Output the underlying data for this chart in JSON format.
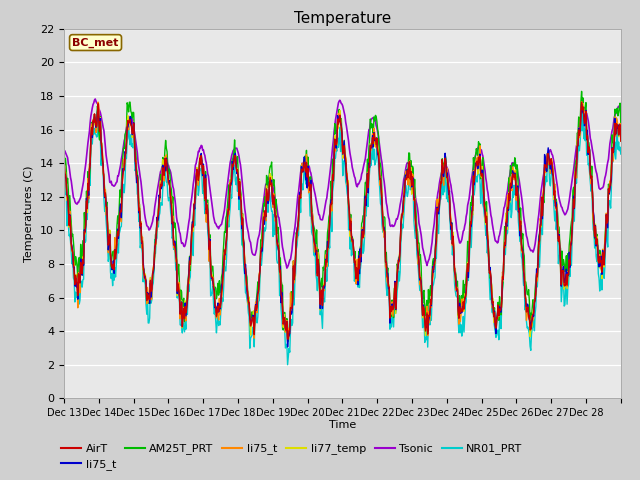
{
  "title": "Temperature",
  "ylabel": "Temperatures (C)",
  "xlabel": "Time",
  "ylim": [
    0,
    22
  ],
  "annotation_text": "BC_met",
  "series_colors": {
    "AirT": "#cc0000",
    "li75_t_blue": "#0000cc",
    "AM25T_PRT": "#00bb00",
    "li75_t_orange": "#ff8800",
    "li77_temp": "#dddd00",
    "Tsonic": "#9900cc",
    "NR01_PRT": "#00cccc"
  },
  "tick_labels": [
    "Dec 13",
    "Dec 14",
    "Dec 15",
    "Dec 16",
    "Dec 17",
    "Dec 18",
    "Dec 19",
    "Dec 20",
    "Dec 21",
    "Dec 22",
    "Dec 23",
    "Dec 24",
    "Dec 25",
    "Dec 26",
    "Dec 27",
    "Dec 28",
    ""
  ],
  "yticks": [
    0,
    2,
    4,
    6,
    8,
    10,
    12,
    14,
    16,
    18,
    20,
    22
  ],
  "fig_bg": "#d0d0d0",
  "plot_bg": "#e8e8e8",
  "grid_color": "#ffffff"
}
